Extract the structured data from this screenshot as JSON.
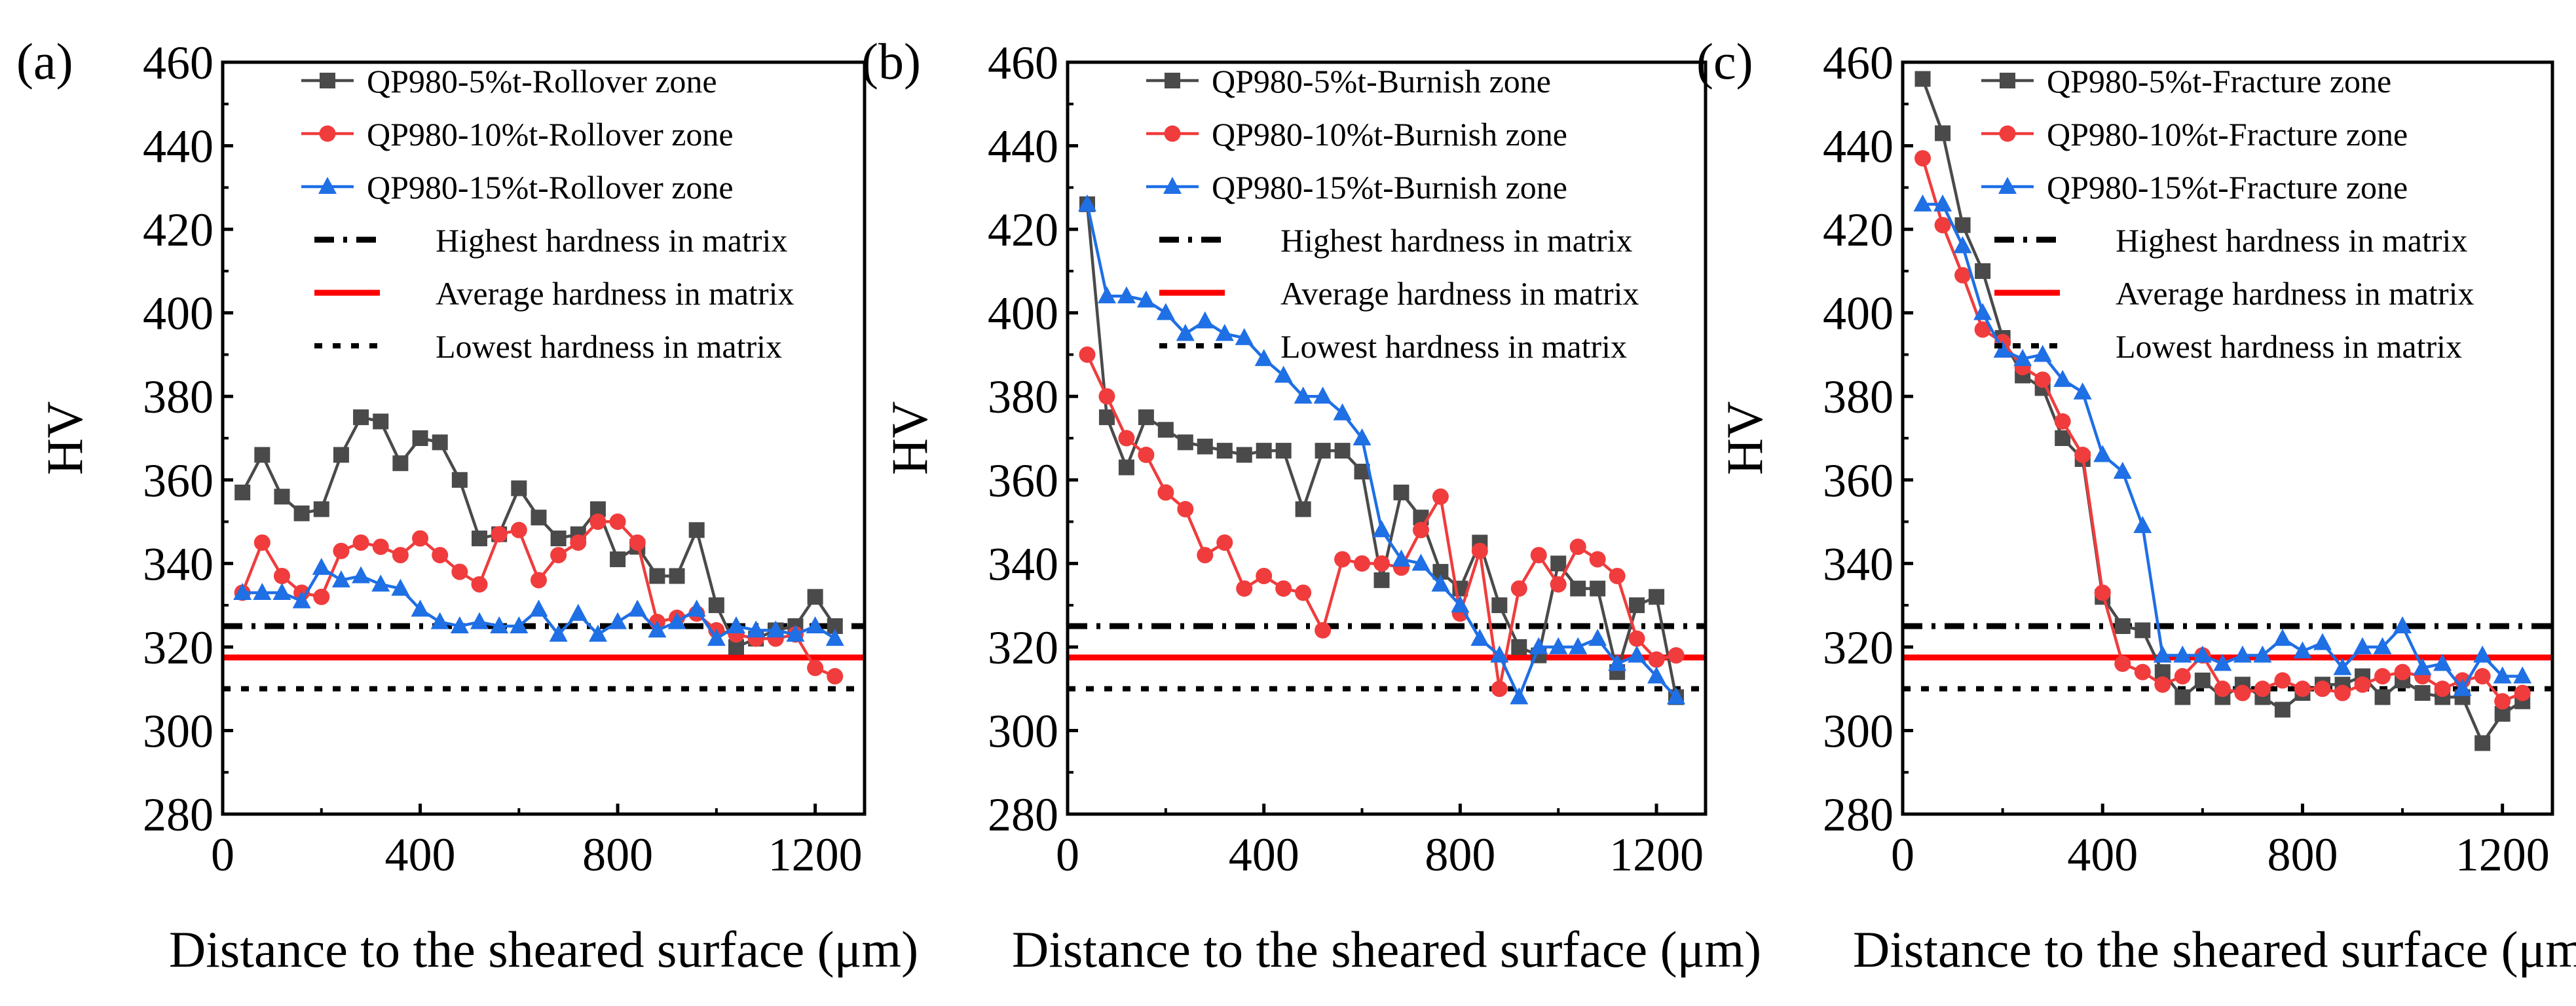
{
  "figure": {
    "background": "#ffffff",
    "line_styles": {
      "highest": {
        "color": "#000000",
        "dash": "dashdot"
      },
      "average": {
        "color": "#ff0000",
        "dash": "solid"
      },
      "lowest": {
        "color": "#000000",
        "dash": "dotted"
      }
    },
    "series_colors": {
      "5": "#4a4a4a",
      "10": "#f03c3c",
      "15": "#1f6fe5"
    }
  },
  "chart_data": [
    {
      "type": "line",
      "panel": "(a)",
      "xlabel": "Distance to the sheared surface (μm)",
      "ylabel": "HV",
      "xlim": [
        0,
        1300
      ],
      "ylim": [
        280,
        460
      ],
      "xticks": [
        0,
        400,
        800,
        1200
      ],
      "yticks": [
        280,
        300,
        320,
        340,
        360,
        380,
        400,
        420,
        440,
        460
      ],
      "legend_position": "top-center",
      "series": [
        {
          "name": "QP980-5%t-Rollover zone",
          "marker": "square",
          "color": "#4a4a4a",
          "x": [
            40,
            80,
            120,
            160,
            200,
            240,
            280,
            320,
            360,
            400,
            440,
            480,
            520,
            560,
            600,
            640,
            680,
            720,
            760,
            800,
            840,
            880,
            920,
            960,
            1000,
            1040,
            1080,
            1120,
            1160,
            1200,
            1240
          ],
          "y": [
            357,
            366,
            356,
            352,
            353,
            366,
            375,
            374,
            364,
            370,
            369,
            360,
            346,
            347,
            358,
            351,
            346,
            347,
            353,
            341,
            344,
            337,
            337,
            348,
            330,
            320,
            322,
            324,
            325,
            332,
            325
          ]
        },
        {
          "name": "QP980-10%t-Rollover zone",
          "marker": "circle",
          "color": "#f03c3c",
          "x": [
            40,
            80,
            120,
            160,
            200,
            240,
            280,
            320,
            360,
            400,
            440,
            480,
            520,
            560,
            600,
            640,
            680,
            720,
            760,
            800,
            840,
            880,
            920,
            960,
            1000,
            1040,
            1080,
            1120,
            1160,
            1200,
            1240
          ],
          "y": [
            333,
            345,
            337,
            333,
            332,
            343,
            345,
            344,
            342,
            346,
            342,
            338,
            335,
            347,
            348,
            336,
            342,
            345,
            350,
            350,
            345,
            326,
            327,
            328,
            324,
            323,
            322,
            322,
            323,
            315,
            313
          ]
        },
        {
          "name": "QP980-15%t-Rollover zone",
          "marker": "triangle",
          "color": "#1f6fe5",
          "x": [
            40,
            80,
            120,
            160,
            200,
            240,
            280,
            320,
            360,
            400,
            440,
            480,
            520,
            560,
            600,
            640,
            680,
            720,
            760,
            800,
            840,
            880,
            920,
            960,
            1000,
            1040,
            1080,
            1120,
            1160,
            1200,
            1240
          ],
          "y": [
            333,
            333,
            333,
            331,
            339,
            336,
            337,
            335,
            334,
            329,
            326,
            325,
            326,
            325,
            325,
            329,
            323,
            328,
            323,
            326,
            329,
            324,
            326,
            329,
            322,
            325,
            324,
            324,
            323,
            325,
            322
          ]
        }
      ],
      "reference_lines": [
        {
          "name": "Highest hardness in matrix",
          "y": 325,
          "style": "highest"
        },
        {
          "name": "Average hardness in matrix",
          "y": 317.5,
          "style": "average"
        },
        {
          "name": "Lowest hardness in matrix",
          "y": 310,
          "style": "lowest"
        }
      ]
    },
    {
      "type": "line",
      "panel": "(b)",
      "xlabel": "Distance to the sheared surface (μm)",
      "ylabel": "HV",
      "xlim": [
        0,
        1300
      ],
      "ylim": [
        280,
        460
      ],
      "xticks": [
        0,
        400,
        800,
        1200
      ],
      "yticks": [
        280,
        300,
        320,
        340,
        360,
        380,
        400,
        420,
        440,
        460
      ],
      "legend_position": "top-center",
      "series": [
        {
          "name": "QP980-5%t-Burnish zone",
          "marker": "square",
          "color": "#4a4a4a",
          "x": [
            40,
            80,
            120,
            160,
            200,
            240,
            280,
            320,
            360,
            400,
            440,
            480,
            520,
            560,
            600,
            640,
            680,
            720,
            760,
            800,
            840,
            880,
            920,
            960,
            1000,
            1040,
            1080,
            1120,
            1160,
            1200,
            1240
          ],
          "y": [
            426,
            375,
            363,
            375,
            372,
            369,
            368,
            367,
            366,
            367,
            367,
            353,
            367,
            367,
            362,
            336,
            357,
            351,
            338,
            334,
            345,
            330,
            320,
            318,
            340,
            334,
            334,
            314,
            330,
            332,
            308
          ]
        },
        {
          "name": "QP980-10%t-Burnish zone",
          "marker": "circle",
          "color": "#f03c3c",
          "x": [
            40,
            80,
            120,
            160,
            200,
            240,
            280,
            320,
            360,
            400,
            440,
            480,
            520,
            560,
            600,
            640,
            680,
            720,
            760,
            800,
            840,
            880,
            920,
            960,
            1000,
            1040,
            1080,
            1120,
            1160,
            1200,
            1240
          ],
          "y": [
            390,
            380,
            370,
            366,
            357,
            353,
            342,
            345,
            334,
            337,
            334,
            333,
            324,
            341,
            340,
            340,
            339,
            348,
            356,
            328,
            343,
            310,
            334,
            342,
            335,
            344,
            341,
            337,
            322,
            317,
            318
          ]
        },
        {
          "name": "QP980-15%t-Burnish zone",
          "marker": "triangle",
          "color": "#1f6fe5",
          "x": [
            40,
            80,
            120,
            160,
            200,
            240,
            280,
            320,
            360,
            400,
            440,
            480,
            520,
            560,
            600,
            640,
            680,
            720,
            760,
            800,
            840,
            880,
            920,
            960,
            1000,
            1040,
            1080,
            1120,
            1160,
            1200,
            1240
          ],
          "y": [
            426,
            404,
            404,
            403,
            400,
            395,
            398,
            395,
            394,
            389,
            385,
            380,
            380,
            376,
            370,
            348,
            341,
            340,
            335,
            330,
            322,
            318,
            308,
            320,
            320,
            320,
            322,
            316,
            318,
            313,
            308
          ]
        }
      ],
      "reference_lines": [
        {
          "name": "Highest hardness in matrix",
          "y": 325,
          "style": "highest"
        },
        {
          "name": "Average hardness in matrix",
          "y": 317.5,
          "style": "average"
        },
        {
          "name": "Lowest hardness in matrix",
          "y": 310,
          "style": "lowest"
        }
      ]
    },
    {
      "type": "line",
      "panel": "(c)",
      "xlabel": "Distance to the sheared surface (μm)",
      "ylabel": "HV",
      "xlim": [
        0,
        1300
      ],
      "ylim": [
        280,
        460
      ],
      "xticks": [
        0,
        400,
        800,
        1200
      ],
      "yticks": [
        280,
        300,
        320,
        340,
        360,
        380,
        400,
        420,
        440,
        460
      ],
      "legend_position": "top-center",
      "series": [
        {
          "name": "QP980-5%t-Fracture zone",
          "marker": "square",
          "color": "#4a4a4a",
          "x": [
            40,
            80,
            120,
            160,
            200,
            240,
            280,
            320,
            360,
            400,
            440,
            480,
            520,
            560,
            600,
            640,
            680,
            720,
            760,
            800,
            840,
            880,
            920,
            960,
            1000,
            1040,
            1080,
            1120,
            1160,
            1200,
            1240
          ],
          "y": [
            456,
            443,
            421,
            410,
            394,
            385,
            382,
            370,
            365,
            332,
            325,
            324,
            314,
            308,
            312,
            308,
            311,
            308,
            305,
            309,
            311,
            311,
            313,
            308,
            312,
            309,
            308,
            308,
            297,
            304,
            307
          ]
        },
        {
          "name": "QP980-10%t-Fracture zone",
          "marker": "circle",
          "color": "#f03c3c",
          "x": [
            40,
            80,
            120,
            160,
            200,
            240,
            280,
            320,
            360,
            400,
            440,
            480,
            520,
            560,
            600,
            640,
            680,
            720,
            760,
            800,
            840,
            880,
            920,
            960,
            1000,
            1040,
            1080,
            1120,
            1160,
            1200,
            1240
          ],
          "y": [
            437,
            421,
            409,
            396,
            393,
            387,
            384,
            374,
            366,
            333,
            316,
            314,
            311,
            313,
            318,
            310,
            309,
            310,
            312,
            310,
            310,
            309,
            311,
            313,
            314,
            313,
            310,
            312,
            313,
            307,
            309
          ]
        },
        {
          "name": "QP980-15%t-Fracture zone",
          "marker": "triangle",
          "color": "#1f6fe5",
          "x": [
            40,
            80,
            120,
            160,
            200,
            240,
            280,
            320,
            360,
            400,
            440,
            480,
            520,
            560,
            600,
            640,
            680,
            720,
            760,
            800,
            840,
            880,
            920,
            960,
            1000,
            1040,
            1080,
            1120,
            1160,
            1200,
            1240
          ],
          "y": [
            426,
            426,
            416,
            400,
            391,
            389,
            390,
            384,
            381,
            366,
            362,
            349,
            318,
            318,
            318,
            316,
            318,
            318,
            322,
            319,
            321,
            315,
            320,
            320,
            325,
            315,
            316,
            310,
            318,
            313,
            313
          ]
        }
      ],
      "reference_lines": [
        {
          "name": "Highest hardness in matrix",
          "y": 325,
          "style": "highest"
        },
        {
          "name": "Average hardness in matrix",
          "y": 317.5,
          "style": "average"
        },
        {
          "name": "Lowest hardness in matrix",
          "y": 310,
          "style": "lowest"
        }
      ]
    }
  ]
}
